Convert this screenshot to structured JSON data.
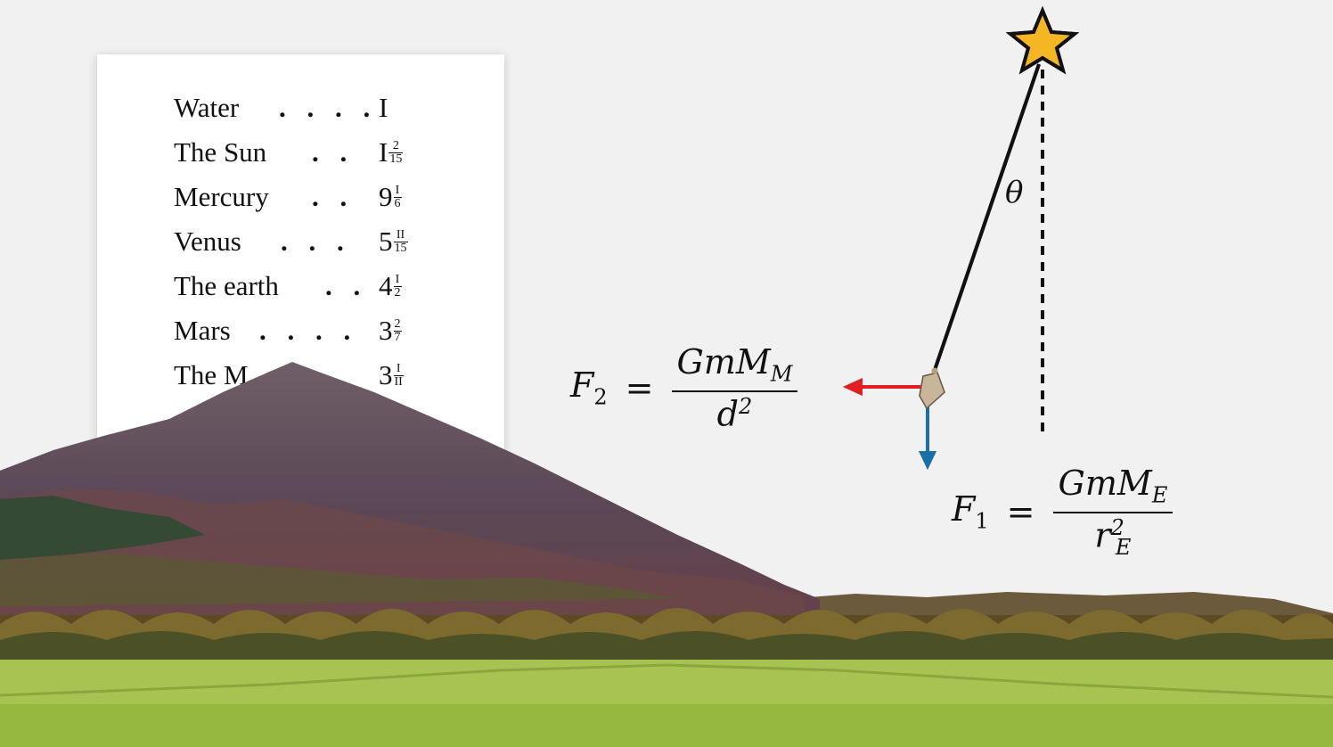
{
  "density_table": {
    "rows": [
      {
        "name": "Water",
        "dots": ". . . .",
        "whole": "I",
        "num": "",
        "den": ""
      },
      {
        "name": "The Sun",
        "dots": ". .",
        "whole": "I",
        "num": "2",
        "den": "15"
      },
      {
        "name": "Mercury",
        "dots": ". .",
        "whole": "9",
        "num": "I",
        "den": "6"
      },
      {
        "name": "Venus",
        "dots": ". . .",
        "whole": "5",
        "num": "II",
        "den": "15"
      },
      {
        "name": "The earth",
        "dots": ". .",
        "whole": "4",
        "num": "I",
        "den": "2"
      },
      {
        "name": "Mars",
        "dots": ". . . .",
        "whole": "3",
        "num": "2",
        "den": "7"
      },
      {
        "name": "The M",
        "dots": "",
        "whole": "3",
        "num": "I",
        "den": "II"
      }
    ]
  },
  "equations": {
    "f2": {
      "lhs": "F",
      "lhs_sub": "2",
      "equals": "=",
      "numer": "GmM",
      "numer_sub": "M",
      "denom": "d",
      "denom_sup": "2"
    },
    "f1": {
      "lhs": "F",
      "lhs_sub": "1",
      "equals": "=",
      "numer": "GmM",
      "numer_sub": "E",
      "denom": "r",
      "denom_sup": "2",
      "denom_sub": "E"
    }
  },
  "angle_label": "θ",
  "colors": {
    "background": "#f1f1f1",
    "star": "#f5b623",
    "f2_arrow": "#e02020",
    "f1_arrow": "#1b6fa8",
    "mountain": "#5a4652",
    "grass": "#9fbd4a",
    "trees": "#8a6a2a"
  },
  "icons": {
    "star": "star-icon",
    "bob": "pendulum-bob-icon"
  }
}
